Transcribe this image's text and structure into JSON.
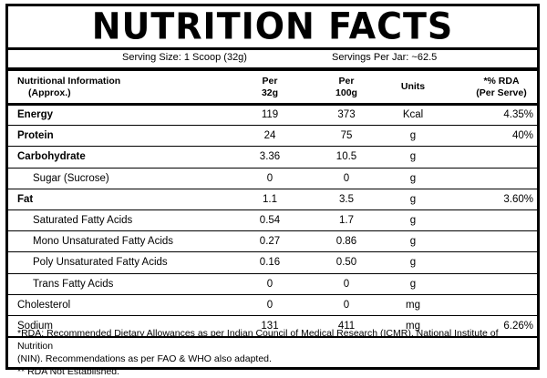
{
  "title": "NUTRITION FACTS",
  "serving": {
    "size": "Serving Size: 1 Scoop (32g)",
    "per_jar": "Servings Per Jar: ~62.5"
  },
  "header": {
    "name_line1": "Nutritional Information",
    "name_line2": "(Approx.)",
    "per32_line1": "Per",
    "per32_line2": "32g",
    "per100_line1": "Per",
    "per100_line2": "100g",
    "units": "Units",
    "rda_line1": "*% RDA",
    "rda_line2": "(Per Serve)"
  },
  "rows": [
    {
      "name": "Energy",
      "per32": "119",
      "per100": "373",
      "unit": "Kcal",
      "rda": "4.35%"
    },
    {
      "name": "Protein",
      "per32": "24",
      "per100": "75",
      "unit": "g",
      "rda": "40%"
    },
    {
      "name": "Carbohydrate",
      "per32": "3.36",
      "per100": "10.5",
      "unit": "g",
      "rda": ""
    },
    {
      "name": "Sugar (Sucrose)",
      "per32": "0",
      "per100": "0",
      "unit": "g",
      "rda": ""
    },
    {
      "name": "Fat",
      "per32": "1.1",
      "per100": "3.5",
      "unit": "g",
      "rda": "3.60%"
    },
    {
      "name": "Saturated Fatty Acids",
      "per32": "0.54",
      "per100": "1.7",
      "unit": "g",
      "rda": ""
    },
    {
      "name": "Mono Unsaturated Fatty Acids",
      "per32": "0.27",
      "per100": "0.86",
      "unit": "g",
      "rda": ""
    },
    {
      "name": "Poly Unsaturated Fatty Acids",
      "per32": "0.16",
      "per100": "0.50",
      "unit": "g",
      "rda": ""
    },
    {
      "name": "Trans Fatty Acids",
      "per32": "0",
      "per100": "0",
      "unit": "g",
      "rda": ""
    },
    {
      "name": "Cholesterol",
      "per32": "0",
      "per100": "0",
      "unit": "mg",
      "rda": ""
    },
    {
      "name": "Sodium",
      "per32": "131",
      "per100": "411",
      "unit": "mg",
      "rda": "6.26%"
    }
  ],
  "footnotes": {
    "line1": "*RDA: Recommended Dietary Allowances as per Indian Council of Medical Research (ICMR), National Institute of Nutrition",
    "line2": "(NIN). Recommendations as per FAO & WHO also adapted.",
    "line3": "** RDA Not Established."
  }
}
